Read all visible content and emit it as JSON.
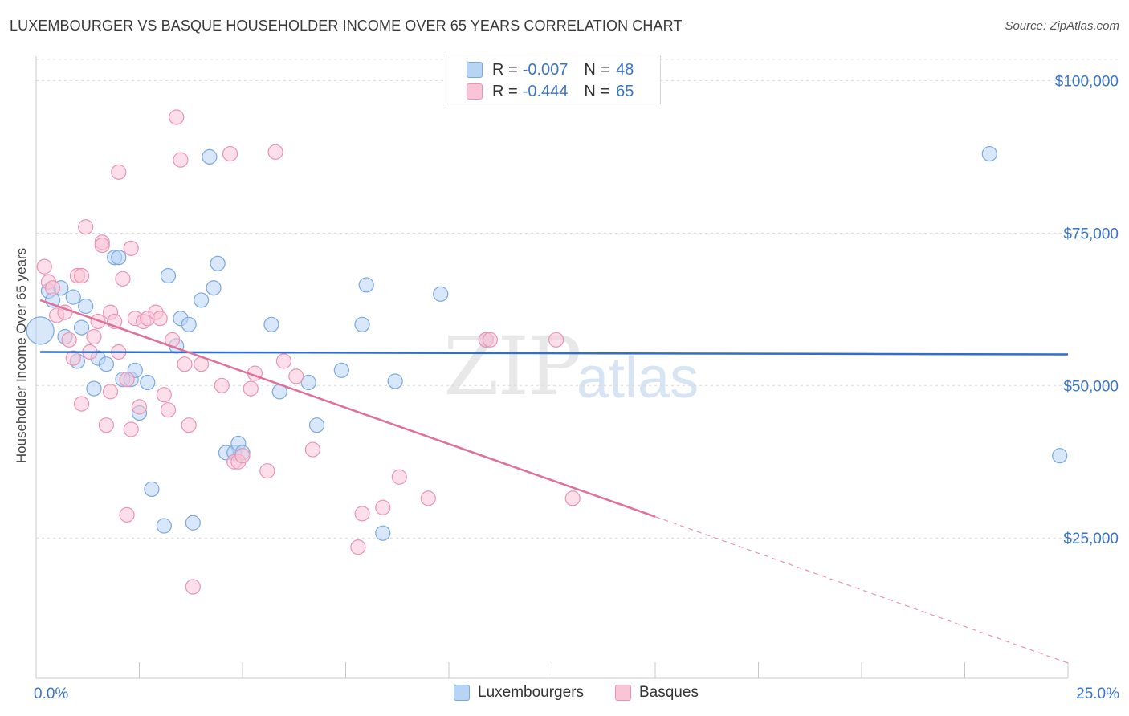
{
  "header": {
    "title": "LUXEMBOURGER VS BASQUE HOUSEHOLDER INCOME OVER 65 YEARS CORRELATION CHART",
    "source": "Source: ZipAtlas.com"
  },
  "watermark": {
    "zip": "ZIP",
    "atlas": "atlas"
  },
  "legend_top": {
    "rows": [
      {
        "r_label": "R =",
        "r_value": "-0.007",
        "n_label": "N =",
        "n_value": "48",
        "fill": "#b8d4f5",
        "stroke": "#7aa8e0"
      },
      {
        "r_label": "R =",
        "r_value": "-0.444",
        "n_label": "N =",
        "n_value": "65",
        "fill": "#f9c4d6",
        "stroke": "#e994b3"
      }
    ]
  },
  "legend_bottom": {
    "items": [
      {
        "label": "Luxembourgers",
        "fill": "#b8d4f5",
        "stroke": "#7aa8e0"
      },
      {
        "label": "Basques",
        "fill": "#f9c4d6",
        "stroke": "#e994b3"
      }
    ]
  },
  "chart_data": {
    "type": "scatter",
    "title": "LUXEMBOURGER VS BASQUE HOUSEHOLDER INCOME OVER 65 YEARS CORRELATION CHART",
    "xlabel": "",
    "ylabel": "Householder Income Over 65 years",
    "xlim": [
      0,
      25
    ],
    "ylim": [
      2000,
      104000
    ],
    "x_ticks": [
      {
        "value": 0,
        "label": "0.0%"
      },
      {
        "value": 25,
        "label": "25.0%"
      }
    ],
    "y_ticks": [
      {
        "value": 25000,
        "label": "$25,000"
      },
      {
        "value": 50000,
        "label": "$50,000"
      },
      {
        "value": 75000,
        "label": "$75,000"
      },
      {
        "value": 100000,
        "label": "$100,000"
      }
    ],
    "grid": true,
    "series": [
      {
        "name": "Luxembourgers",
        "color": "#7aa8e0",
        "fill": "#b8d4f5",
        "trend": {
          "x0": 0.1,
          "y0": 55500,
          "x1": 25,
          "y1": 55100
        },
        "points": [
          [
            0.1,
            59000,
            "large"
          ],
          [
            0.3,
            65500
          ],
          [
            0.4,
            64000
          ],
          [
            0.6,
            66000
          ],
          [
            0.7,
            58000
          ],
          [
            0.9,
            64500
          ],
          [
            1.0,
            54000
          ],
          [
            1.1,
            59500
          ],
          [
            1.2,
            63000
          ],
          [
            1.4,
            49500
          ],
          [
            1.5,
            54500
          ],
          [
            1.7,
            53500
          ],
          [
            1.9,
            71000
          ],
          [
            2.0,
            71000
          ],
          [
            2.1,
            51000
          ],
          [
            2.3,
            51000
          ],
          [
            2.4,
            52500
          ],
          [
            2.5,
            45500
          ],
          [
            2.7,
            50500
          ],
          [
            2.8,
            33000
          ],
          [
            3.1,
            27000
          ],
          [
            3.2,
            68000
          ],
          [
            3.4,
            56500
          ],
          [
            3.5,
            61000
          ],
          [
            3.7,
            60000
          ],
          [
            3.8,
            27500
          ],
          [
            4.0,
            64000
          ],
          [
            4.2,
            87500
          ],
          [
            4.3,
            66000
          ],
          [
            4.4,
            70000
          ],
          [
            4.6,
            39000
          ],
          [
            4.8,
            39000
          ],
          [
            4.9,
            40500
          ],
          [
            5.0,
            39000
          ],
          [
            5.7,
            60000
          ],
          [
            5.9,
            49000
          ],
          [
            6.6,
            50500
          ],
          [
            6.8,
            43500
          ],
          [
            7.4,
            52500
          ],
          [
            7.9,
            60000
          ],
          [
            8.0,
            66500
          ],
          [
            8.4,
            25800
          ],
          [
            8.7,
            50700
          ],
          [
            9.8,
            65000
          ],
          [
            10.9,
            57500
          ],
          [
            23.1,
            88000
          ],
          [
            24.8,
            38500
          ]
        ]
      },
      {
        "name": "Basques",
        "color": "#e994b3",
        "fill": "#f9c4d6",
        "trend": {
          "x0": 0.1,
          "y0": 64000,
          "x1": 15,
          "y1": 28500,
          "dash_x1": 25,
          "dash_y1": 4500
        },
        "points": [
          [
            0.2,
            69500
          ],
          [
            0.3,
            67000
          ],
          [
            0.4,
            66000
          ],
          [
            0.5,
            61500
          ],
          [
            0.7,
            62000
          ],
          [
            0.8,
            57500
          ],
          [
            0.9,
            54500
          ],
          [
            1.0,
            68000
          ],
          [
            1.1,
            68000
          ],
          [
            1.1,
            47000
          ],
          [
            1.2,
            76000
          ],
          [
            1.3,
            55500
          ],
          [
            1.4,
            58000
          ],
          [
            1.5,
            60500
          ],
          [
            1.6,
            73500
          ],
          [
            1.6,
            73000
          ],
          [
            1.7,
            43500
          ],
          [
            1.8,
            49000
          ],
          [
            1.8,
            62000
          ],
          [
            1.9,
            60500
          ],
          [
            2.0,
            55500
          ],
          [
            2.0,
            85000
          ],
          [
            2.1,
            67500
          ],
          [
            2.2,
            51000
          ],
          [
            2.2,
            28800
          ],
          [
            2.3,
            72500
          ],
          [
            2.3,
            42800
          ],
          [
            2.4,
            61000
          ],
          [
            2.5,
            46500
          ],
          [
            2.6,
            60500
          ],
          [
            2.7,
            61000
          ],
          [
            2.9,
            62000
          ],
          [
            3.0,
            61000
          ],
          [
            3.1,
            48500
          ],
          [
            3.2,
            46000
          ],
          [
            3.3,
            57500
          ],
          [
            3.4,
            94000
          ],
          [
            3.5,
            87000
          ],
          [
            3.6,
            53500
          ],
          [
            3.7,
            43500
          ],
          [
            3.8,
            17000
          ],
          [
            4.0,
            53500
          ],
          [
            4.5,
            50000
          ],
          [
            4.7,
            88000
          ],
          [
            4.8,
            37500
          ],
          [
            4.9,
            37500
          ],
          [
            5.0,
            38500
          ],
          [
            5.2,
            49500
          ],
          [
            5.3,
            52000
          ],
          [
            5.6,
            36000
          ],
          [
            5.8,
            88300
          ],
          [
            6.0,
            54000
          ],
          [
            6.3,
            51500
          ],
          [
            6.7,
            39500
          ],
          [
            7.8,
            23500
          ],
          [
            7.9,
            29000
          ],
          [
            8.4,
            30000
          ],
          [
            8.8,
            35000
          ],
          [
            9.5,
            31500
          ],
          [
            10.9,
            57500
          ],
          [
            11.0,
            57500
          ],
          [
            12.6,
            57500
          ],
          [
            13.0,
            31500
          ]
        ]
      }
    ]
  }
}
